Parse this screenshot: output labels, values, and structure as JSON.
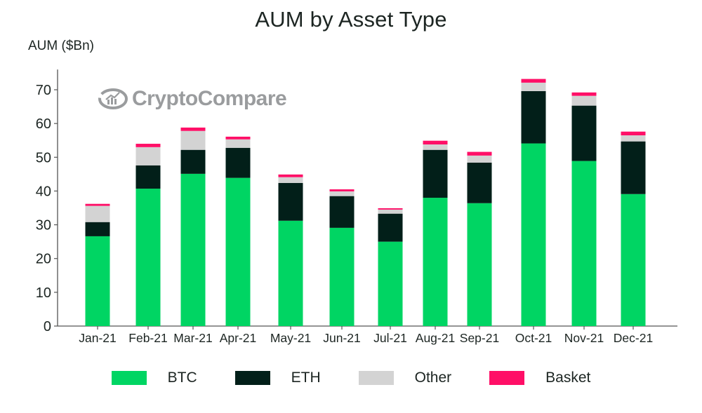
{
  "chart_data": {
    "type": "bar",
    "stacked": true,
    "title": "AUM by Asset Type",
    "xlabel": "",
    "ylabel": "AUM ($Bn)",
    "ylim": [
      0,
      76
    ],
    "yticks": [
      0,
      10,
      20,
      30,
      40,
      50,
      60,
      70
    ],
    "grid": false,
    "legend_position": "bottom",
    "watermark": "CryptoCompare",
    "categories": [
      "Jan-21",
      "Feb-21",
      "Mar-21",
      "Apr-21",
      "May-21",
      "Jun-21",
      "Jul-21",
      "Aug-21",
      "Sep-21",
      "Oct-21",
      "Nov-21",
      "Dec-21"
    ],
    "series": [
      {
        "name": "BTC",
        "color": "#00d563",
        "values": [
          26.6,
          40.7,
          45.1,
          43.9,
          31.2,
          29.1,
          25.0,
          38.0,
          36.4,
          54.1,
          48.9,
          39.1
        ]
      },
      {
        "name": "ETH",
        "color": "#021f19",
        "values": [
          4.2,
          6.9,
          7.1,
          8.9,
          11.2,
          9.4,
          8.3,
          14.2,
          12.0,
          15.5,
          16.4,
          15.6
        ]
      },
      {
        "name": "Other",
        "color": "#d3d3d3",
        "values": [
          4.8,
          5.4,
          5.6,
          2.5,
          1.7,
          1.4,
          1.2,
          1.6,
          2.1,
          2.5,
          2.9,
          1.8
        ]
      },
      {
        "name": "Basket",
        "color": "#ff0f67",
        "values": [
          0.6,
          1.0,
          1.0,
          0.8,
          0.8,
          0.6,
          0.4,
          1.1,
          1.1,
          1.1,
          1.0,
          1.1
        ]
      }
    ]
  }
}
